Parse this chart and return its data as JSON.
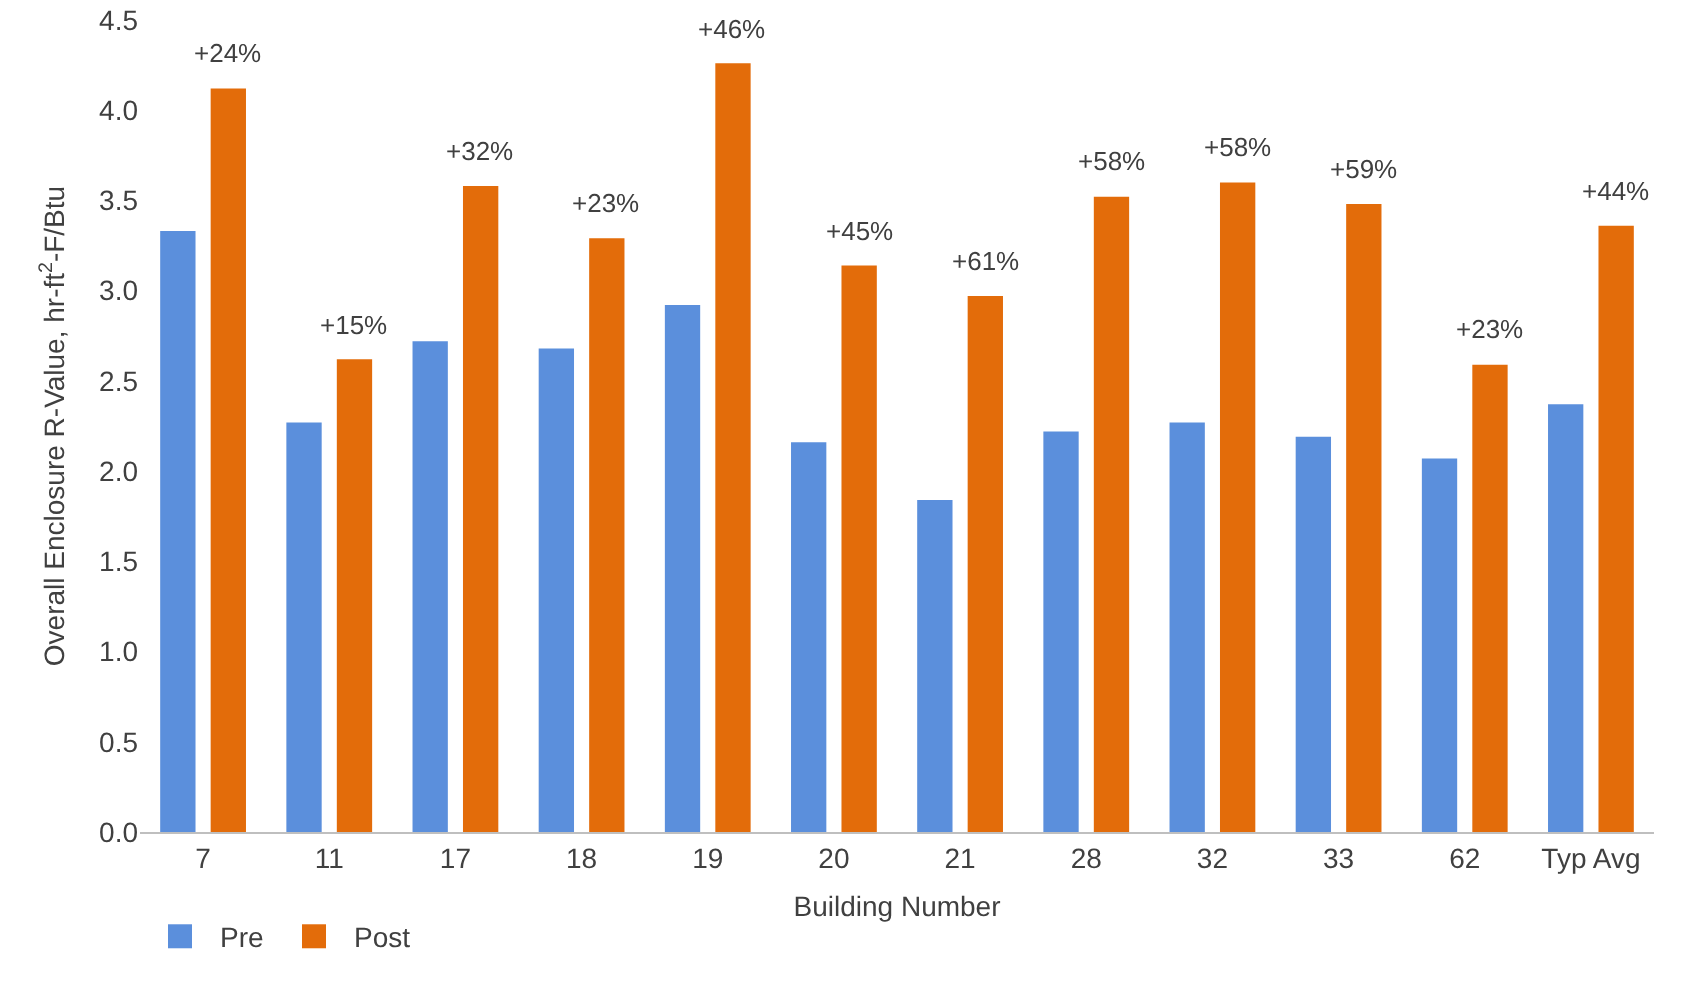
{
  "chart_data": {
    "type": "bar",
    "xlabel": "Building Number",
    "ylabel": "Overall Enclosure R-Value, hr-ft$^{2}$-F/Btu",
    "categories": [
      "7",
      "11",
      "17",
      "18",
      "19",
      "20",
      "21",
      "28",
      "32",
      "33",
      "62",
      "Typ Avg"
    ],
    "series": [
      {
        "name": "Pre",
        "color": "#5b8fdc",
        "values": [
          3.33,
          2.27,
          2.72,
          2.68,
          2.92,
          2.16,
          1.84,
          2.22,
          2.27,
          2.19,
          2.07,
          2.37
        ]
      },
      {
        "name": "Post",
        "color": "#e36c0a",
        "values": [
          4.12,
          2.62,
          3.58,
          3.29,
          4.26,
          3.14,
          2.97,
          3.52,
          3.6,
          3.48,
          2.59,
          3.36
        ]
      }
    ],
    "annotations": [
      {
        "text": "+24%",
        "x": "7",
        "y": 4.12
      },
      {
        "text": "+15%",
        "x": "11",
        "y": 2.62
      },
      {
        "text": "+32%",
        "x": "17",
        "y": 3.58
      },
      {
        "text": "+23%",
        "x": "18",
        "y": 3.29
      },
      {
        "text": "+46%",
        "x": "19",
        "y": 4.26
      },
      {
        "text": "+45%",
        "x": "20",
        "y": 3.14
      },
      {
        "text": "+61%",
        "x": "21",
        "y": 2.97
      },
      {
        "text": "+58%",
        "x": "28",
        "y": 3.52
      },
      {
        "text": "+58%",
        "x": "32",
        "y": 3.6
      },
      {
        "text": "+59%",
        "x": "33",
        "y": 3.48
      },
      {
        "text": "+23%",
        "x": "62",
        "y": 2.59
      },
      {
        "text": "+44%",
        "x": "Typ Avg",
        "y": 3.36
      }
    ],
    "ylim": [
      0,
      4.5
    ],
    "yticks": [
      {
        "value": 0,
        "label": "0.0"
      },
      {
        "value": 0.5,
        "label": "0.5"
      },
      {
        "value": 1,
        "label": "1.0"
      },
      {
        "value": 1.5,
        "label": "1.5"
      },
      {
        "value": 2,
        "label": "2.0"
      },
      {
        "value": 2.5,
        "label": "2.5"
      },
      {
        "value": 3,
        "label": "3.0"
      },
      {
        "value": 3.5,
        "label": "3.5"
      },
      {
        "value": 4,
        "label": "4.0"
      },
      {
        "value": 4.5,
        "label": "4.5"
      }
    ],
    "grid": false,
    "legend": "bottom left"
  }
}
